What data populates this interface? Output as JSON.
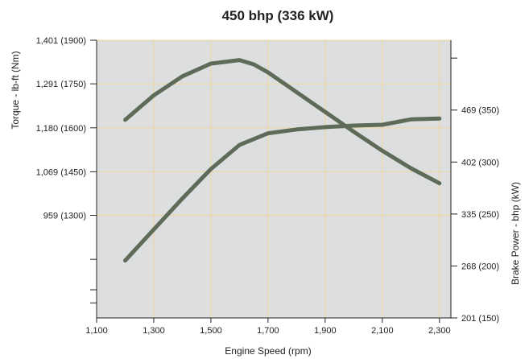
{
  "chart_data": {
    "type": "line",
    "title": "450 bhp (336 kW)",
    "xlabel": "Engine Speed (rpm)",
    "ylabel_left": "Torque - lb-ft (Nm)",
    "ylabel_right": "Brake Power - bhp (kW)",
    "x_ticks": [
      {
        "value": 1100,
        "label": "1,100"
      },
      {
        "value": 1300,
        "label": "1,300"
      },
      {
        "value": 1500,
        "label": "1,500"
      },
      {
        "value": 1700,
        "label": "1,700"
      },
      {
        "value": 1900,
        "label": "1,900"
      },
      {
        "value": 2100,
        "label": "2,100"
      },
      {
        "value": 2300,
        "label": "2,300"
      }
    ],
    "xlim": [
      1100,
      2340
    ],
    "torque_ylim": [
      700,
      1401
    ],
    "torque_ticks": [
      {
        "value": 959,
        "label": "959 (1300)"
      },
      {
        "value": 1069,
        "label": "1,069 (1450)"
      },
      {
        "value": 1180,
        "label": "1,180 (1600)"
      },
      {
        "value": 1291,
        "label": "1,291 (1750)"
      },
      {
        "value": 1401,
        "label": "1,401 (1900)"
      }
    ],
    "torque_gridlines": [
      959,
      1069,
      1180,
      1291,
      1401
    ],
    "torque_unlabeled_ticks": [
      848,
      738
    ],
    "power_ylim": [
      201,
      559
    ],
    "power_ticks": [
      {
        "value": 201,
        "label": "201 (150)"
      },
      {
        "value": 268,
        "label": "268 (200)"
      },
      {
        "value": 335,
        "label": "335 (250)"
      },
      {
        "value": 402,
        "label": "402 (300)"
      },
      {
        "value": 469,
        "label": "469 (350)"
      }
    ],
    "power_unlabeled_ticks": [
      536,
      603,
      670
    ],
    "series": [
      {
        "axis": "left",
        "x": [
          1200,
          1300,
          1400,
          1500,
          1600,
          1650,
          1700,
          1800,
          1900,
          2000,
          2100,
          2200,
          2300
        ],
        "y": [
          1200,
          1262,
          1310,
          1342,
          1351,
          1340,
          1320,
          1270,
          1220,
          1170,
          1122,
          1078,
          1040
        ]
      },
      {
        "axis": "right",
        "x": [
          1200,
          1300,
          1400,
          1500,
          1600,
          1700,
          1800,
          1900,
          2000,
          2100,
          2200,
          2300
        ],
        "y": [
          275,
          315,
          355,
          393,
          424,
          439,
          444,
          447,
          449,
          450,
          457,
          458
        ]
      }
    ],
    "grid": true,
    "colors": {
      "plot_background": "#dcdee0",
      "gridline": "#efd79a",
      "line": "#5e6b58",
      "axis": "#222222"
    }
  }
}
